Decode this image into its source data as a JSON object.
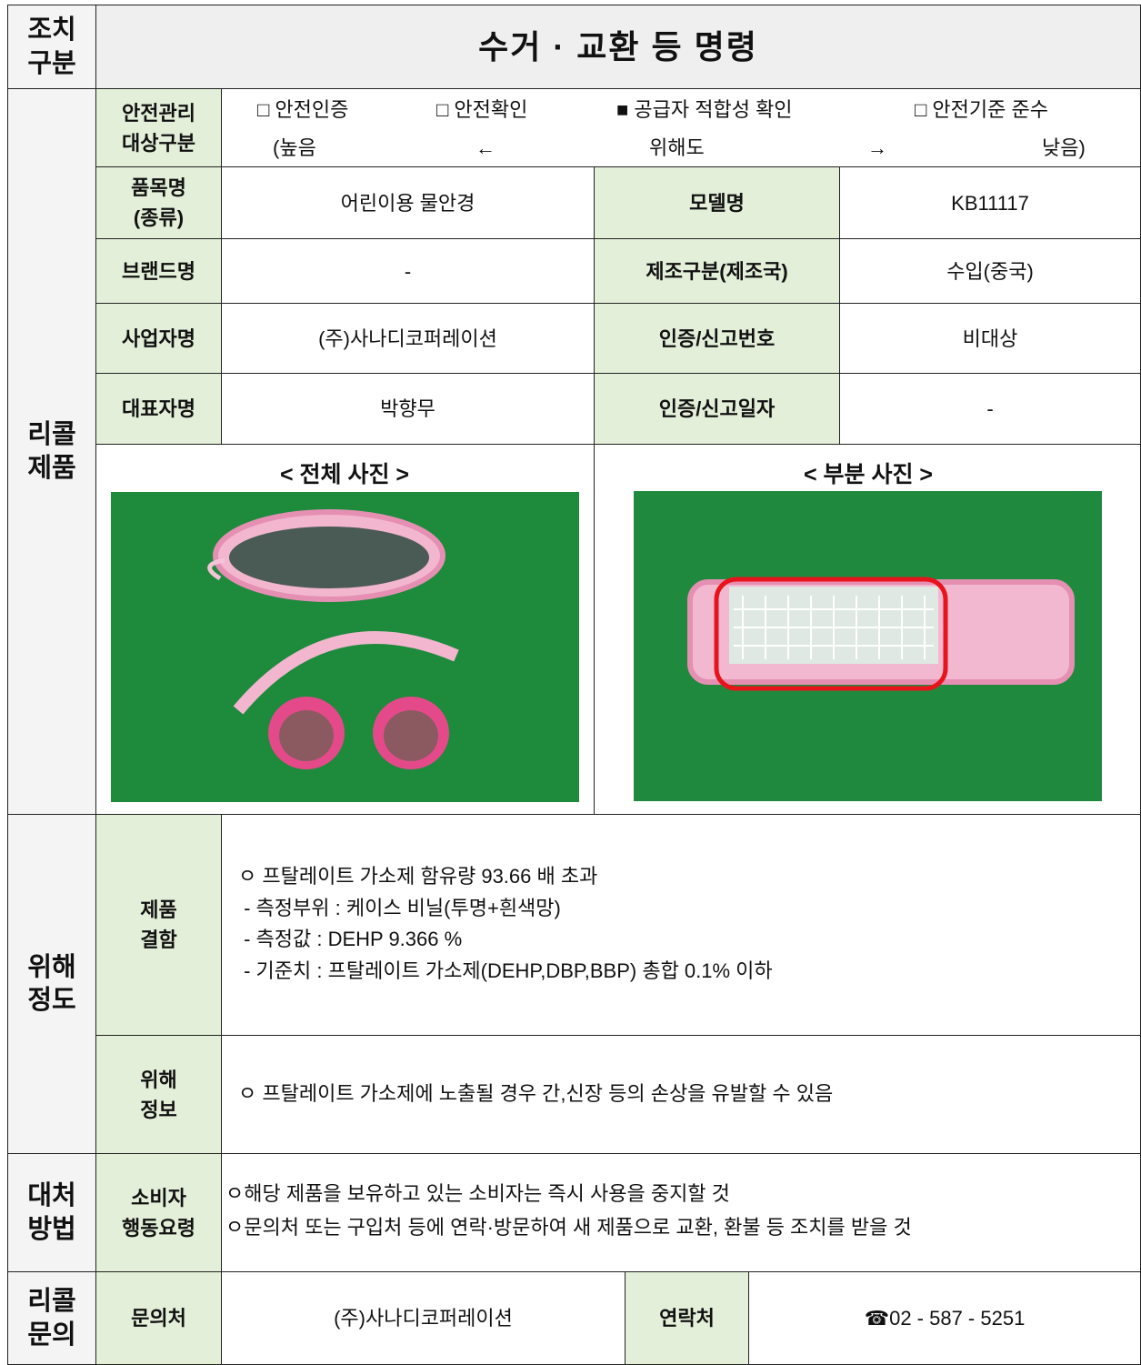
{
  "header": {
    "label": "조치\n구분",
    "title": "수거 · 교환 등 명령"
  },
  "product": {
    "section": "리콜\n제품",
    "safety_class": {
      "label": "안전관리\n대상구분",
      "options": [
        "□ 안전인증",
        "□ 안전확인",
        "■ 공급자 적합성 확인",
        "□ 안전기준 준수"
      ],
      "scale": [
        "(높음",
        "←",
        "위해도",
        "→",
        "낮음)"
      ]
    },
    "rows": [
      [
        "품목명\n(종류)",
        "어린이용 물안경",
        "모델명",
        "KB11117"
      ],
      [
        "브랜드명",
        "-",
        "제조구분(제조국)",
        "수입(중국)"
      ],
      [
        "사업자명",
        "(주)사나디코퍼레이션",
        "인증/신고번호",
        "비대상"
      ],
      [
        "대표자명",
        "박향무",
        "인증/신고일자",
        "-"
      ]
    ],
    "photos": {
      "full": "< 전체 사진 >",
      "partial": "< 부분 사진 >"
    }
  },
  "hazard": {
    "section": "위해\n정도",
    "defect": {
      "label": "제품\n결함",
      "lines": [
        "ㅇ 프탈레이트 가소제 함유량 93.66 배 초과",
        " - 측정부위 : 케이스 비닐(투명+흰색망)",
        " - 측정값 : DEHP 9.366 %",
        " - 기준치 : 프탈레이트 가소제(DEHP,DBP,BBP) 총합 0.1% 이하"
      ]
    },
    "info": {
      "label": "위해\n정보",
      "text": "ㅇ 프탈레이트 가소제에 노출될 경우 간,신장 등의 손상을 유발할 수 있음"
    }
  },
  "action": {
    "section": "대처\n방법",
    "label": "소비자\n행동요령",
    "lines": [
      "ㅇ해당 제품을 보유하고 있는 소비자는 즉시 사용을 중지할 것",
      "ㅇ문의처 또는 구입처 등에 연락·방문하여 새 제품으로 교환, 환불 등 조치를 받을 것"
    ]
  },
  "contact": {
    "section": "리콜\n문의",
    "label": "문의처",
    "value": "(주)사나디코퍼레이션",
    "phone_label": "연락처",
    "phone": "☎02 - 587 - 5251"
  }
}
